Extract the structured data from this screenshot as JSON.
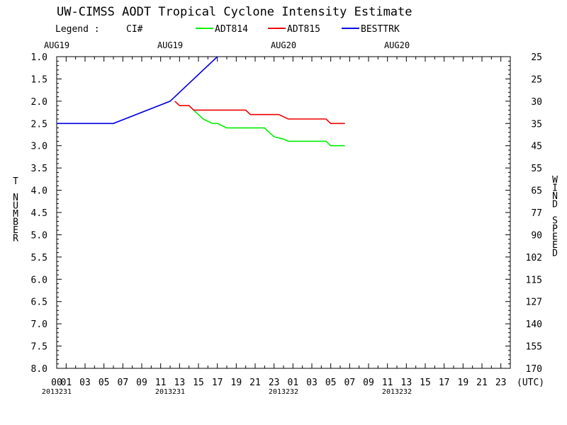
{
  "chart_data": {
    "type": "line",
    "title": "UW-CIMSS AODT Tropical Cyclone Intensity Estimate",
    "legend": {
      "label": "Legend :",
      "field": "CI#"
    },
    "y_left_label": "T NUMBER",
    "y_right_label": "WIND SPEED",
    "x_unit": "(UTC)",
    "ylim": [
      1.0,
      8.0
    ],
    "y_ticks": [
      "1.0",
      "1.5",
      "2.0",
      "2.5",
      "3.0",
      "3.5",
      "4.0",
      "4.5",
      "5.0",
      "5.5",
      "6.0",
      "6.5",
      "7.0",
      "7.5",
      "8.0"
    ],
    "wind_ticks": [
      "25",
      "25",
      "30",
      "35",
      "45",
      "55",
      "65",
      "77",
      "90",
      "102",
      "115",
      "127",
      "140",
      "155",
      "170"
    ],
    "x_hour_labels": [
      "00",
      "01",
      "03",
      "05",
      "07",
      "09",
      "11",
      "13",
      "15",
      "17",
      "19",
      "21",
      "23",
      "01",
      "03",
      "05",
      "07",
      "09",
      "11",
      "13",
      "15",
      "17",
      "19",
      "21",
      "23"
    ],
    "top_dates": [
      "AUG19",
      "AUG19",
      "AUG20",
      "AUG20"
    ],
    "bottom_dates": [
      "2013231",
      "2013231",
      "2013232",
      "2013232"
    ],
    "series": [
      {
        "name": "ADT814",
        "color": "#00ee00",
        "points": [
          [
            14.5,
            2.2
          ],
          [
            15.0,
            2.3
          ],
          [
            15.5,
            2.4
          ],
          [
            16.0,
            2.45
          ],
          [
            16.5,
            2.5
          ],
          [
            17.0,
            2.5
          ],
          [
            17.5,
            2.55
          ],
          [
            18.0,
            2.6
          ],
          [
            22.0,
            2.6
          ],
          [
            22.5,
            2.7
          ],
          [
            23.0,
            2.8
          ],
          [
            24.0,
            2.85
          ],
          [
            24.5,
            2.9
          ],
          [
            28.5,
            2.9
          ],
          [
            29.0,
            3.0
          ],
          [
            30.5,
            3.0
          ]
        ]
      },
      {
        "name": "ADT815",
        "color": "#ee0000",
        "points": [
          [
            12.5,
            2.0
          ],
          [
            13.0,
            2.1
          ],
          [
            14.0,
            2.1
          ],
          [
            14.5,
            2.2
          ],
          [
            20.0,
            2.2
          ],
          [
            20.5,
            2.3
          ],
          [
            23.5,
            2.3
          ],
          [
            24.5,
            2.4
          ],
          [
            28.5,
            2.4
          ],
          [
            29.0,
            2.5
          ],
          [
            30.5,
            2.5
          ]
        ]
      },
      {
        "name": "BESTTRK",
        "color": "#0000dd",
        "points": [
          [
            0.0,
            2.5
          ],
          [
            6.0,
            2.5
          ],
          [
            12.0,
            2.0
          ],
          [
            17.0,
            1.0
          ]
        ]
      }
    ]
  }
}
